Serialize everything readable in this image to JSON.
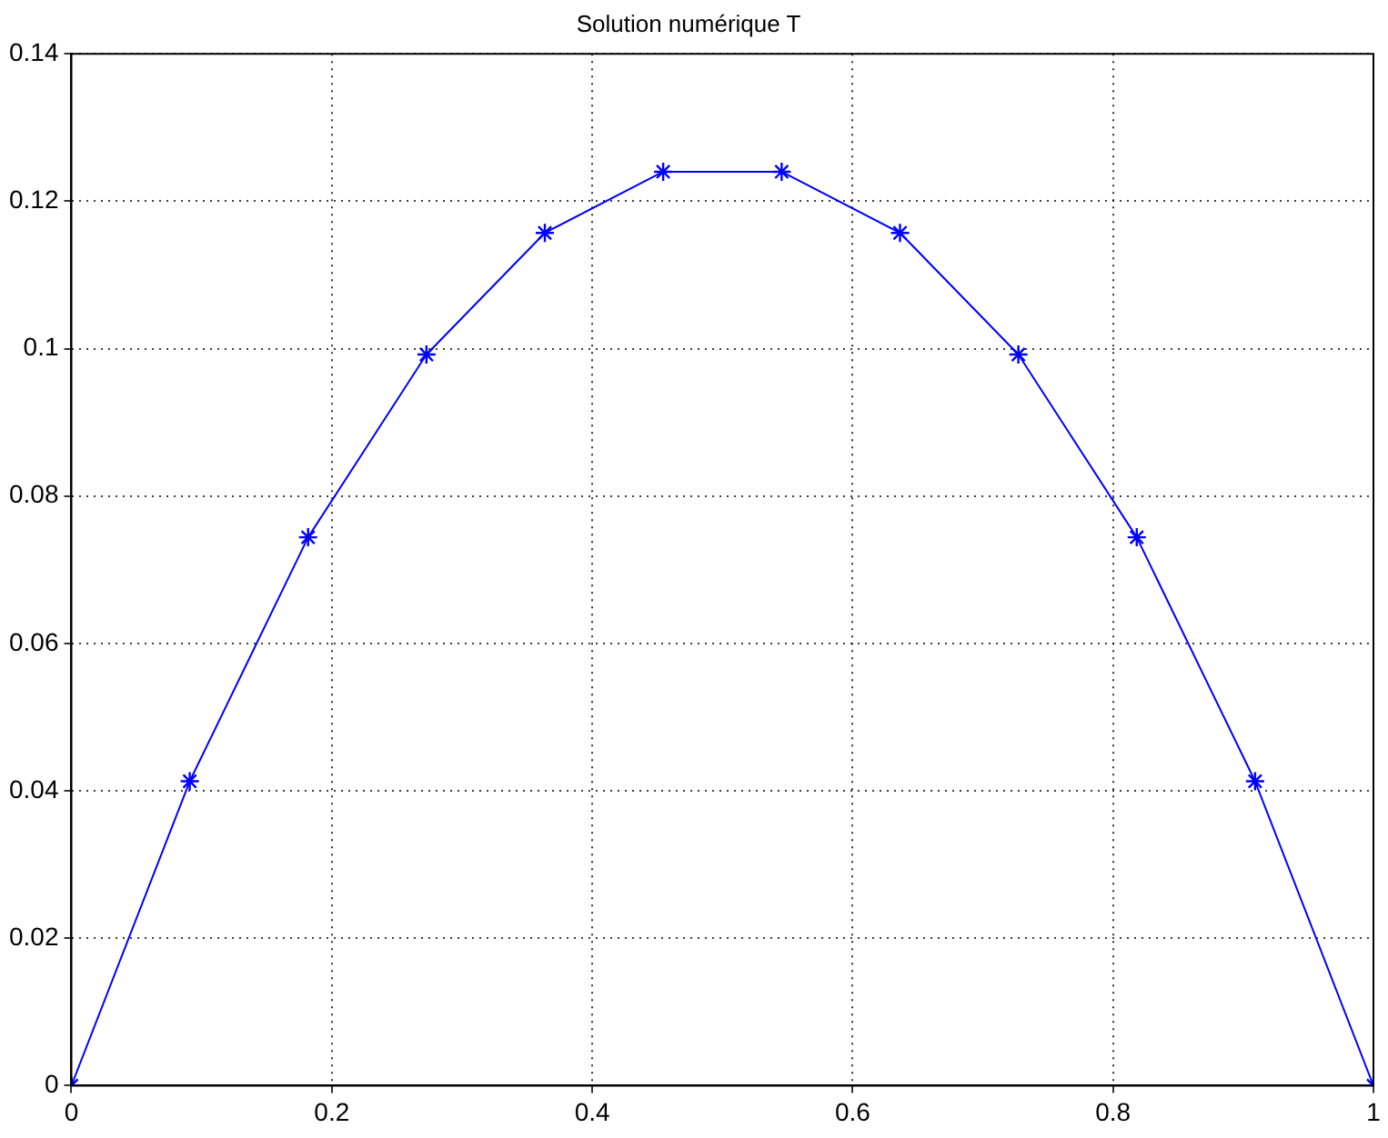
{
  "chart_data": {
    "type": "line",
    "title": "Solution numérique T",
    "x": [
      0,
      0.0909,
      0.1818,
      0.2727,
      0.3636,
      0.4545,
      0.5455,
      0.6364,
      0.7273,
      0.8182,
      0.9091,
      1
    ],
    "series": [
      {
        "color": "#0000ff",
        "values": [
          0,
          0.0413,
          0.0744,
          0.0992,
          0.1157,
          0.124,
          0.124,
          0.1157,
          0.0992,
          0.0744,
          0.0413,
          0
        ]
      }
    ],
    "xlim": [
      0,
      1
    ],
    "xticks": [
      0,
      0.2,
      0.4,
      0.6,
      0.8,
      1
    ],
    "ylim": [
      0,
      0.14
    ],
    "yticks": [
      0,
      0.02,
      0.04,
      0.06,
      0.08,
      0.1,
      0.12,
      0.14
    ],
    "grid": true,
    "marker": "cross",
    "line_style": "solid",
    "legend": false
  }
}
